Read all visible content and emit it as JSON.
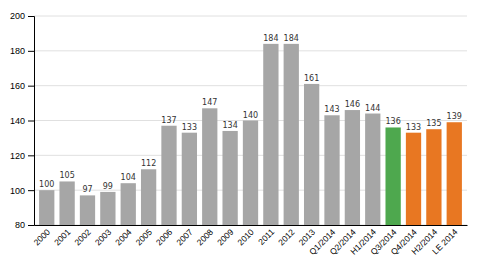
{
  "chart_data": {
    "type": "bar",
    "categories": [
      "2000",
      "2001",
      "2002",
      "2003",
      "2004",
      "2005",
      "2006",
      "2007",
      "2008",
      "2009",
      "2010",
      "2011",
      "2012",
      "2013",
      "Q1/2014",
      "Q2/2014",
      "H1/2014",
      "Q3/2014",
      "Q4/2014",
      "H2/2014",
      "LE 2014"
    ],
    "values": [
      100,
      105,
      97,
      99,
      104,
      112,
      137,
      133,
      147,
      134,
      140,
      184,
      184,
      161,
      143,
      146,
      144,
      136,
      133,
      135,
      139
    ],
    "colors": [
      "#a6a6a6",
      "#a6a6a6",
      "#a6a6a6",
      "#a6a6a6",
      "#a6a6a6",
      "#a6a6a6",
      "#a6a6a6",
      "#a6a6a6",
      "#a6a6a6",
      "#a6a6a6",
      "#a6a6a6",
      "#a6a6a6",
      "#a6a6a6",
      "#a6a6a6",
      "#a6a6a6",
      "#a6a6a6",
      "#a6a6a6",
      "#4ea84e",
      "#e87722",
      "#e87722",
      "#e87722"
    ],
    "ylim": [
      80,
      200
    ],
    "yticks": [
      80,
      100,
      120,
      140,
      160,
      180,
      200
    ],
    "grid": true,
    "data_labels": true
  }
}
